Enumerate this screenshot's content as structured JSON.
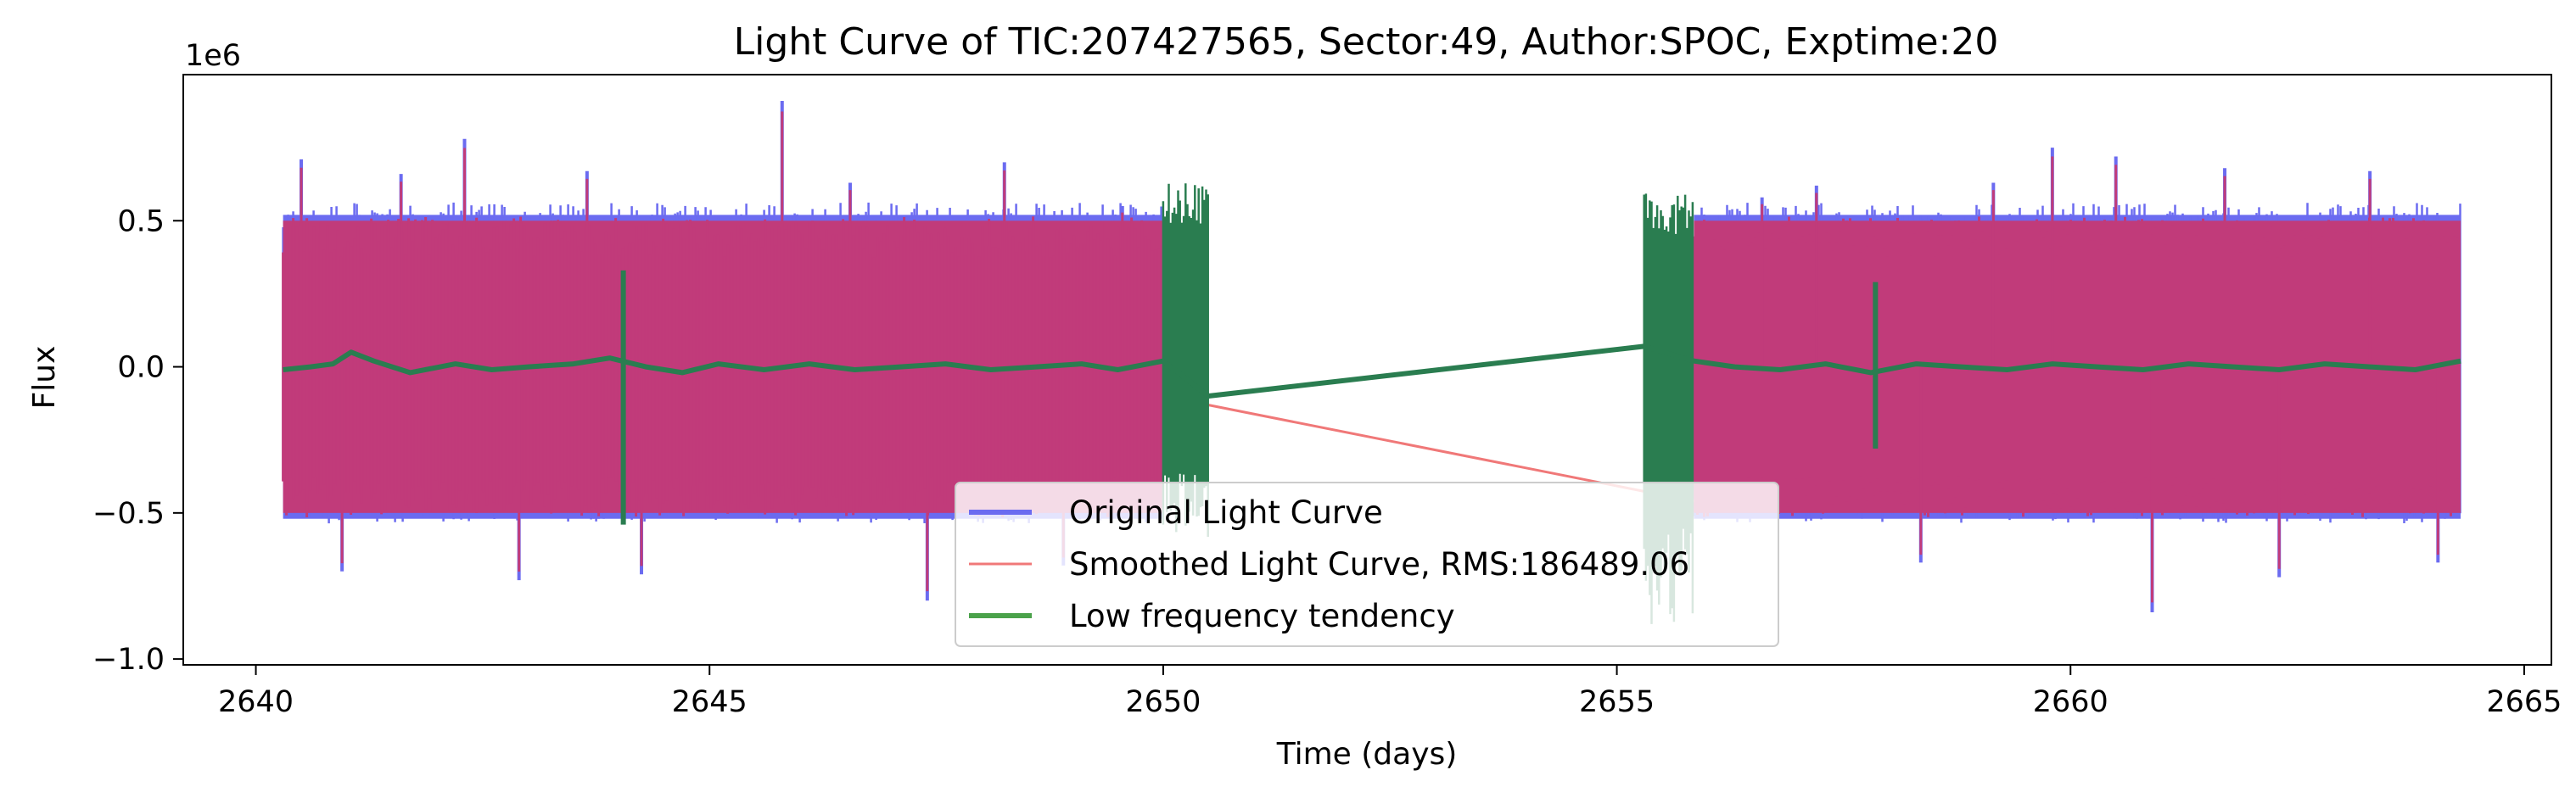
{
  "chart_data": {
    "type": "line",
    "title": "Light Curve of TIC:207427565, Sector:49, Author:SPOC, Exptime:20",
    "xlabel": "Time (days)",
    "ylabel": "Flux",
    "y_offset_label": "1e6",
    "xlim": [
      2639.2,
      2665.3
    ],
    "ylim": [
      -1.02,
      1.0
    ],
    "xticks": [
      2640,
      2645,
      2650,
      2655,
      2660,
      2665
    ],
    "yticks": [
      -1.0,
      -0.5,
      0.0,
      0.5
    ],
    "xtick_labels": [
      "2640",
      "2645",
      "2650",
      "2655",
      "2660",
      "2665"
    ],
    "ytick_labels": [
      "−1.0",
      "−0.5",
      "0.0",
      "0.5"
    ],
    "grid": false,
    "legend_position": "lower center",
    "data_gap": [
      2650.5,
      2655.3
    ],
    "series": [
      {
        "name": "Original Light Curve",
        "color": "#6b6bf0",
        "segments": [
          [
            2640.3,
            2650.0
          ],
          [
            2655.85,
            2664.3
          ]
        ],
        "band": [
          -0.52,
          0.52
        ],
        "spikes": [
          [
            2640.5,
            0.71
          ],
          [
            2640.95,
            -0.7
          ],
          [
            2641.6,
            0.66
          ],
          [
            2642.3,
            0.78
          ],
          [
            2642.9,
            -0.73
          ],
          [
            2643.65,
            0.67
          ],
          [
            2644.25,
            -0.71
          ],
          [
            2645.8,
            0.91
          ],
          [
            2646.55,
            0.63
          ],
          [
            2647.4,
            -0.8
          ],
          [
            2648.25,
            0.7
          ],
          [
            2648.9,
            -0.68
          ],
          [
            2649.55,
            0.55
          ],
          [
            2656.6,
            0.58
          ],
          [
            2657.2,
            0.62
          ],
          [
            2658.35,
            -0.67
          ],
          [
            2659.15,
            0.63
          ],
          [
            2659.8,
            0.75
          ],
          [
            2660.5,
            0.72
          ],
          [
            2660.9,
            -0.84
          ],
          [
            2661.7,
            0.68
          ],
          [
            2662.3,
            -0.72
          ],
          [
            2663.3,
            0.67
          ],
          [
            2664.05,
            -0.67
          ]
        ]
      },
      {
        "name": "Smoothed Light Curve, RMS:186489.06",
        "color": "#f07878",
        "segments": [
          [
            2640.3,
            2650.0
          ],
          [
            2655.85,
            2664.3
          ]
        ],
        "band": [
          -0.5,
          0.5
        ],
        "bridge": [
          [
            2650.0,
            -0.1
          ],
          [
            2655.85,
            -0.46
          ]
        ]
      },
      {
        "name": "Low frequency tendency",
        "color": "#2a7d50",
        "trend": [
          [
            2640.3,
            -0.01
          ],
          [
            2640.6,
            0.0
          ],
          [
            2640.85,
            0.01
          ],
          [
            2641.05,
            0.05
          ],
          [
            2641.3,
            0.02
          ],
          [
            2641.7,
            -0.02
          ],
          [
            2642.2,
            0.01
          ],
          [
            2642.6,
            -0.01
          ],
          [
            2643.0,
            0.0
          ],
          [
            2643.5,
            0.01
          ],
          [
            2643.9,
            0.03
          ],
          [
            2644.3,
            0.0
          ],
          [
            2644.7,
            -0.02
          ],
          [
            2645.1,
            0.01
          ],
          [
            2645.6,
            -0.01
          ],
          [
            2646.1,
            0.01
          ],
          [
            2646.6,
            -0.01
          ],
          [
            2647.1,
            0.0
          ],
          [
            2647.6,
            0.01
          ],
          [
            2648.1,
            -0.01
          ],
          [
            2648.6,
            0.0
          ],
          [
            2649.1,
            0.01
          ],
          [
            2649.5,
            -0.01
          ],
          [
            2650.0,
            0.02
          ],
          [
            2650.5,
            -0.1
          ],
          [
            2655.3,
            0.07
          ],
          [
            2655.85,
            0.02
          ],
          [
            2656.3,
            0.0
          ],
          [
            2656.8,
            -0.01
          ],
          [
            2657.3,
            0.01
          ],
          [
            2657.8,
            -0.02
          ],
          [
            2658.3,
            0.01
          ],
          [
            2658.8,
            0.0
          ],
          [
            2659.3,
            -0.01
          ],
          [
            2659.8,
            0.01
          ],
          [
            2660.3,
            0.0
          ],
          [
            2660.8,
            -0.01
          ],
          [
            2661.3,
            0.01
          ],
          [
            2661.8,
            0.0
          ],
          [
            2662.3,
            -0.01
          ],
          [
            2662.8,
            0.01
          ],
          [
            2663.3,
            0.0
          ],
          [
            2663.8,
            -0.01
          ],
          [
            2664.3,
            0.02
          ]
        ],
        "noisy_segments": [
          [
            2650.0,
            2650.5,
            -0.6,
            0.63
          ],
          [
            2655.3,
            2655.85,
            -0.92,
            0.6
          ]
        ],
        "spikes": [
          [
            2644.05,
            -0.54,
            0.33
          ],
          [
            2657.85,
            -0.28,
            0.29
          ]
        ]
      }
    ]
  }
}
